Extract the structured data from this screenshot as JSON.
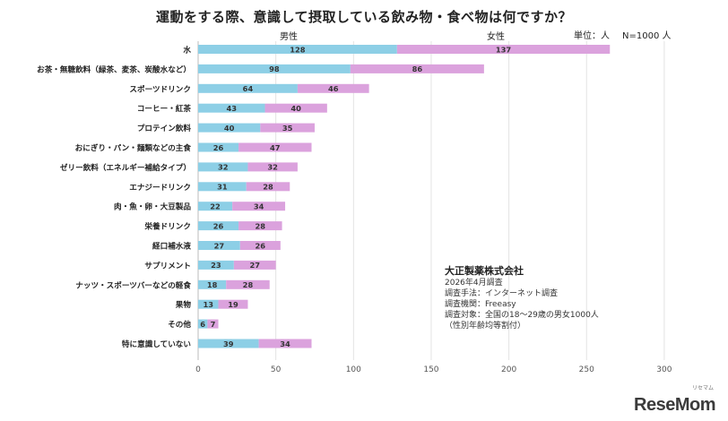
{
  "chart_data": {
    "type": "bar",
    "stacked": true,
    "orientation": "horizontal",
    "title": "運動をする際、意識して摂取している飲み物・食べ物は何ですか？",
    "unit_label": "単位：人",
    "sample_label": "N=1000 人",
    "categories": [
      "水",
      "お茶・無糖飲料（緑茶、麦茶、炭酸水など）",
      "スポーツドリンク",
      "コーヒー・紅茶",
      "プロテイン飲料",
      "おにぎり・パン・麺類などの主食",
      "ゼリー飲料（エネルギー補給タイプ）",
      "エナジードリンク",
      "肉・魚・卵・大豆製品",
      "栄養ドリンク",
      "経口補水液",
      "サプリメント",
      "ナッツ・スポーツバーなどの軽食",
      "果物",
      "その他",
      "特に意識していない"
    ],
    "series": [
      {
        "name": "男性",
        "color": "#8dcfe6",
        "values": [
          128,
          98,
          64,
          43,
          40,
          26,
          32,
          31,
          22,
          26,
          27,
          23,
          18,
          13,
          6,
          39
        ]
      },
      {
        "name": "女性",
        "color": "#dba2dd",
        "values": [
          137,
          86,
          46,
          40,
          35,
          47,
          32,
          28,
          34,
          28,
          26,
          27,
          28,
          19,
          7,
          34
        ]
      }
    ],
    "xlim": [
      0,
      300
    ],
    "xticks": [
      0,
      50,
      100,
      150,
      200,
      250,
      300
    ],
    "grid": true,
    "legend_position": "top"
  },
  "note": {
    "company": "大正製薬株式会社",
    "lines": [
      "2026年4月調査",
      "調査手法：インターネット調査",
      "調査機関：Freeasy",
      "調査対象：全国の18～29歳の男女1000人",
      "（性別年齢均等割付）"
    ]
  },
  "logo": {
    "text": "ReseMom",
    "sub": "リセマム"
  }
}
